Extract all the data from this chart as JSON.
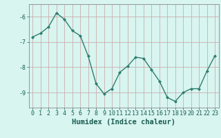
{
  "x": [
    0,
    1,
    2,
    3,
    4,
    5,
    6,
    7,
    8,
    9,
    10,
    11,
    12,
    13,
    14,
    15,
    16,
    17,
    18,
    19,
    20,
    21,
    22,
    23
  ],
  "y": [
    -6.8,
    -6.65,
    -6.4,
    -5.85,
    -6.1,
    -6.55,
    -6.75,
    -7.55,
    -8.65,
    -9.05,
    -8.85,
    -8.2,
    -7.95,
    -7.6,
    -7.65,
    -8.1,
    -8.55,
    -9.2,
    -9.35,
    -9.0,
    -8.85,
    -8.85,
    -8.15,
    -7.55
  ],
  "line_color": "#2e7d6e",
  "marker": "D",
  "marker_size": 2.0,
  "bg_color": "#d8f5f0",
  "grid_color": "#b8ddd8",
  "xlabel": "Humidex (Indice chaleur)",
  "ylim": [
    -9.6,
    -5.5
  ],
  "xlim": [
    -0.5,
    23.5
  ],
  "yticks": [
    -9,
    -8,
    -7,
    -6
  ],
  "xticks": [
    0,
    1,
    2,
    3,
    4,
    5,
    6,
    7,
    8,
    9,
    10,
    11,
    12,
    13,
    14,
    15,
    16,
    17,
    18,
    19,
    20,
    21,
    22,
    23
  ],
  "tick_fontsize": 6,
  "xlabel_fontsize": 7.5,
  "linewidth": 1.0
}
